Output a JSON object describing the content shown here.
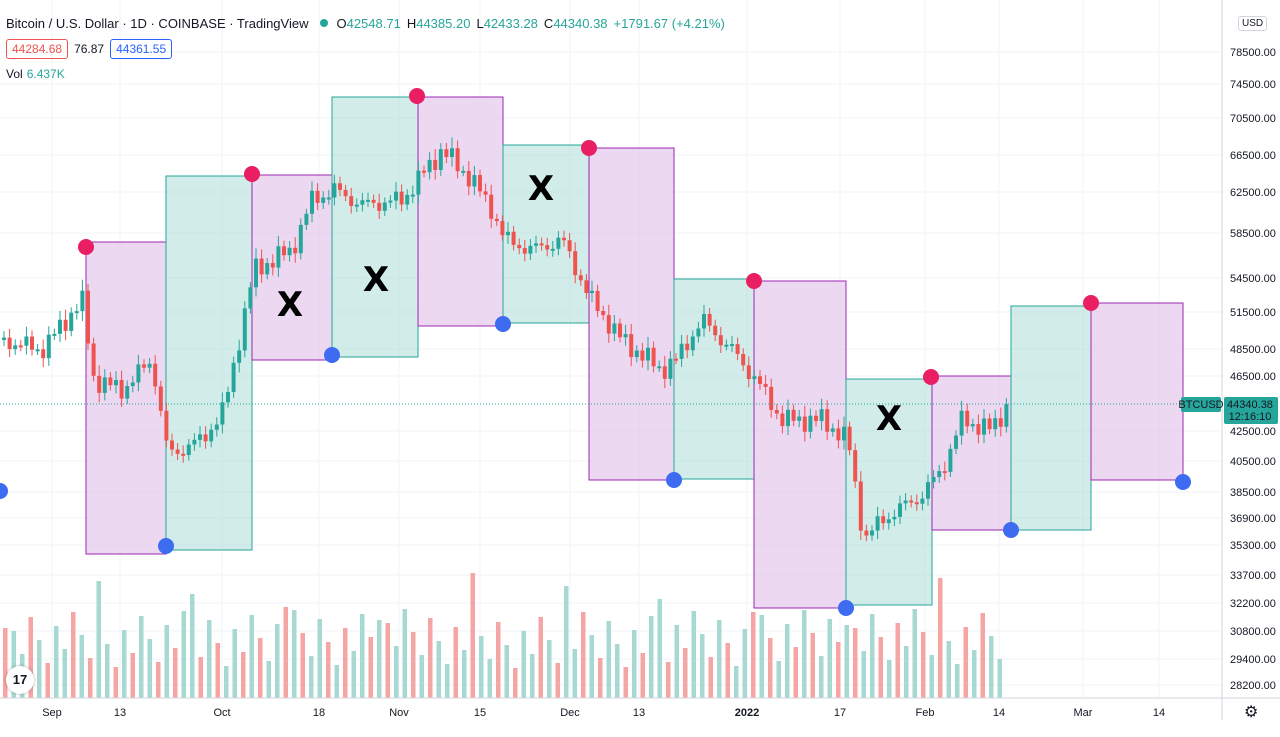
{
  "header": {
    "symbol": "Bitcoin / U.S. Dollar · 1D · COINBASE · TradingView",
    "open_label": "O",
    "open": "42548.71",
    "high_label": "H",
    "high": "44385.20",
    "low_label": "L",
    "low": "42433.28",
    "close_label": "C",
    "close": "44340.38",
    "change": "+1791.67 (+4.21%)"
  },
  "bid": "44284.68",
  "spread": "76.87",
  "ask": "44361.55",
  "volume": {
    "label": "Vol",
    "value": "6.437K"
  },
  "currency": "USD",
  "logo": "17",
  "colors": {
    "up": "#26a69a",
    "down": "#ef5350",
    "pink_box": "#e1bee7",
    "green_box": "#b2dfdb",
    "high_dot": "#e91e63",
    "low_dot": "#3d6cf0"
  },
  "chart_data": {
    "type": "candlestick",
    "y_ticks": [
      "78500.00",
      "74500.00",
      "70500.00",
      "66500.00",
      "62500.00",
      "58500.00",
      "54500.00",
      "51500.00",
      "48500.00",
      "46500.00",
      "42500.00",
      "40500.00",
      "38500.00",
      "36900.00",
      "35300.00",
      "33700.00",
      "32200.00",
      "30800.00",
      "29400.00",
      "28200.00"
    ],
    "x_ticks": [
      "Sep",
      "13",
      "Oct",
      "18",
      "Nov",
      "15",
      "Dec",
      "13",
      "2022",
      "17",
      "Feb",
      "14",
      "Mar",
      "14"
    ],
    "last_price_label": "BTCUSD",
    "last_price": "44340.38",
    "countdown": "12:16:10",
    "x_marks": [
      "X",
      "X",
      "X",
      "X"
    ]
  }
}
